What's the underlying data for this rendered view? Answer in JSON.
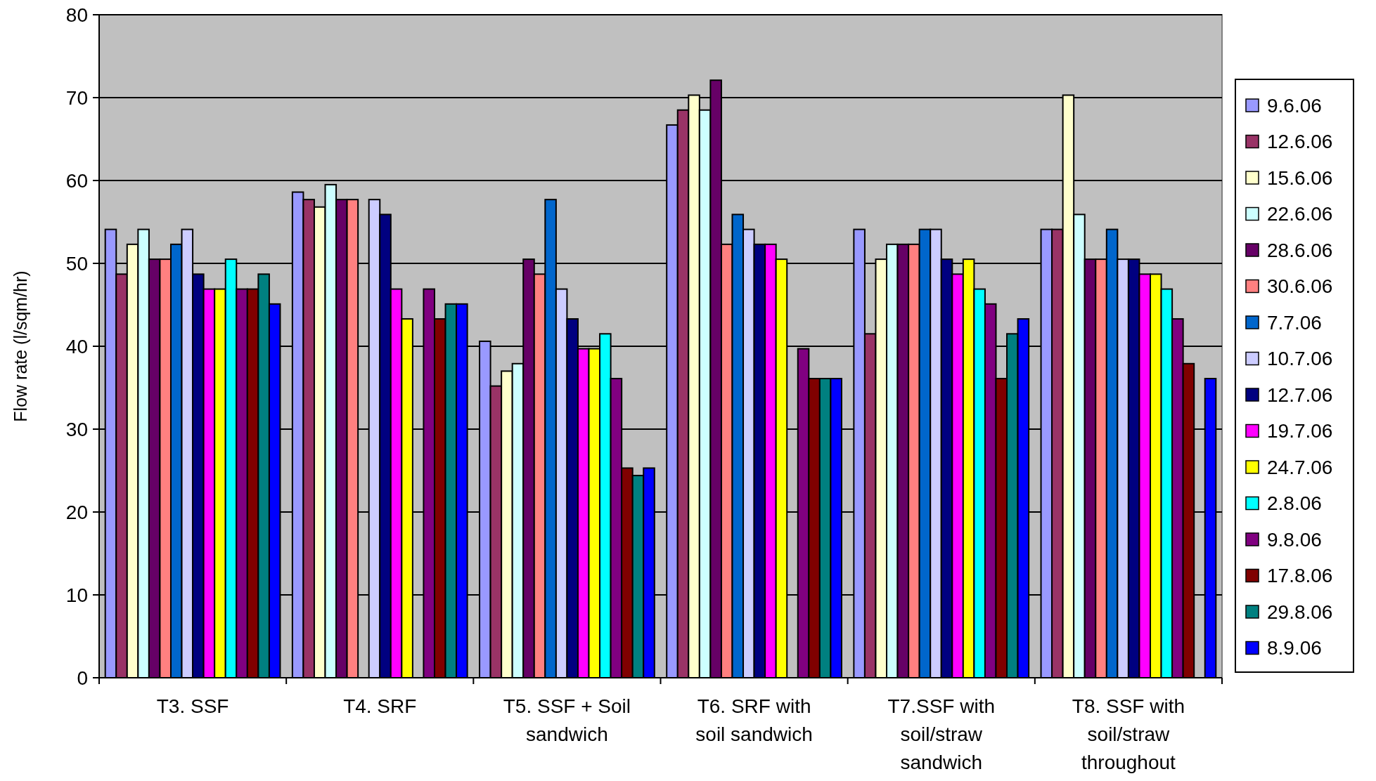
{
  "chart_data": {
    "type": "bar",
    "ylabel": "Flow rate (l/sqm/hr)",
    "categories": [
      "T3. SSF",
      "T4. SRF",
      "T5. SSF + Soil sandwich",
      "T6. SRF with soil sandwich",
      "T7.SSF with soil/straw sandwich",
      "T8. SSF with soil/straw throughout"
    ],
    "ylim": [
      0,
      80
    ],
    "yticks": [
      0,
      10,
      20,
      30,
      40,
      50,
      60,
      70,
      80
    ],
    "grid": "y",
    "legend": "right",
    "series": [
      {
        "name": "9.6.06",
        "color": "#9999ff",
        "values": [
          54.1,
          58.6,
          40.6,
          66.7,
          54.1,
          54.1
        ]
      },
      {
        "name": "12.6.06",
        "color": "#993366",
        "values": [
          48.7,
          57.7,
          35.2,
          68.5,
          41.5,
          54.1
        ]
      },
      {
        "name": "15.6.06",
        "color": "#ffffcc",
        "values": [
          52.3,
          56.8,
          37.0,
          70.3,
          50.5,
          70.3
        ]
      },
      {
        "name": "22.6.06",
        "color": "#ccffff",
        "values": [
          54.1,
          59.5,
          37.9,
          68.5,
          52.3,
          55.9
        ]
      },
      {
        "name": "28.6.06",
        "color": "#660066",
        "values": [
          50.5,
          57.7,
          50.5,
          72.1,
          52.3,
          50.5
        ]
      },
      {
        "name": "30.6.06",
        "color": "#ff8080",
        "values": [
          50.5,
          57.7,
          48.7,
          52.3,
          52.3,
          50.5
        ]
      },
      {
        "name": "7.7.06",
        "color": "#0066cc",
        "values": [
          52.3,
          null,
          57.7,
          55.9,
          54.1,
          54.1
        ]
      },
      {
        "name": "10.7.06",
        "color": "#ccccff",
        "values": [
          54.1,
          57.7,
          46.9,
          54.1,
          54.1,
          50.5
        ]
      },
      {
        "name": "12.7.06",
        "color": "#000080",
        "values": [
          48.7,
          55.9,
          43.3,
          52.3,
          50.5,
          50.5
        ]
      },
      {
        "name": "19.7.06",
        "color": "#ff00ff",
        "values": [
          46.9,
          46.9,
          39.7,
          52.3,
          48.7,
          48.7
        ]
      },
      {
        "name": "24.7.06",
        "color": "#ffff00",
        "values": [
          46.9,
          43.3,
          39.7,
          50.5,
          50.5,
          48.7
        ]
      },
      {
        "name": "2.8.06",
        "color": "#00ffff",
        "values": [
          50.5,
          null,
          41.5,
          null,
          46.9,
          46.9
        ]
      },
      {
        "name": "9.8.06",
        "color": "#800080",
        "values": [
          46.9,
          46.9,
          36.1,
          39.7,
          45.1,
          43.3
        ]
      },
      {
        "name": "17.8.06",
        "color": "#800000",
        "values": [
          46.9,
          43.3,
          25.3,
          36.1,
          36.1,
          37.9
        ]
      },
      {
        "name": "29.8.06",
        "color": "#008080",
        "values": [
          48.7,
          45.1,
          24.4,
          36.1,
          41.5,
          null
        ]
      },
      {
        "name": "8.9.06",
        "color": "#0000ff",
        "values": [
          45.1,
          45.1,
          25.3,
          36.1,
          43.3,
          36.1
        ]
      }
    ]
  }
}
